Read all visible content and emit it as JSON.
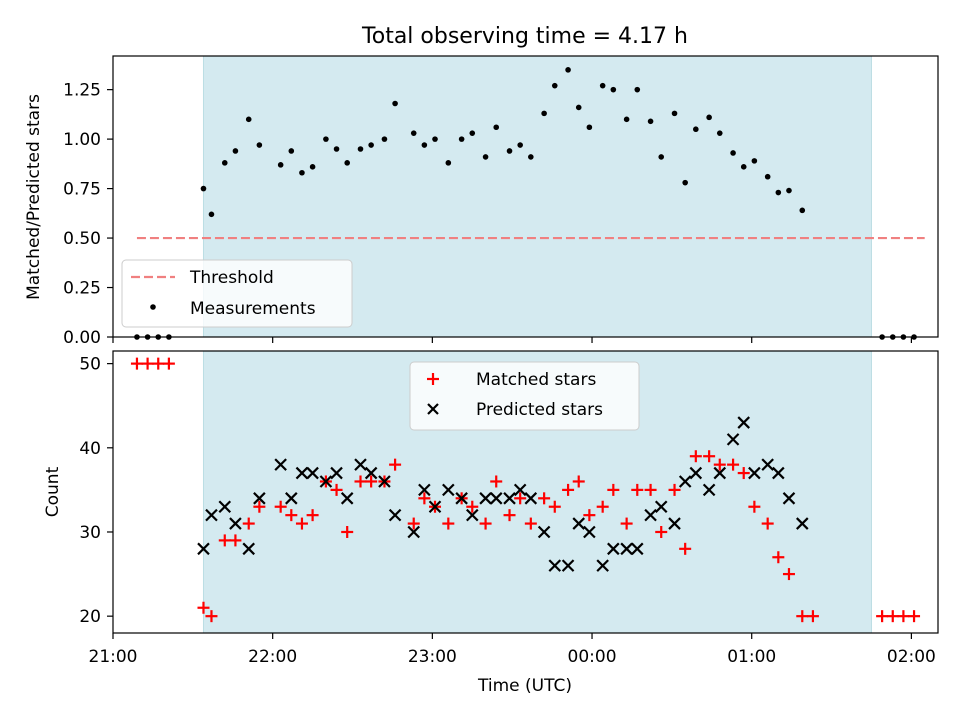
{
  "title": "Total observing time = 4.17 h",
  "colors": {
    "shade": "#d4eaf0",
    "shade_edge": "#bcdde4",
    "threshold": "#f08080",
    "measurement": "#000000",
    "matched": "#ff0000",
    "predicted": "#000000"
  },
  "chart_data": [
    {
      "type": "scatter",
      "ylabel": "Matched/Predicted stars",
      "xlim": [
        "21:00",
        "02:10"
      ],
      "ylim": [
        0,
        1.42
      ],
      "yticks": [
        "0.00",
        "0.25",
        "0.50",
        "0.75",
        "1.00",
        "1.25"
      ],
      "shaded_interval": [
        "21:34",
        "23:59+1:45"
      ],
      "threshold": {
        "name": "Threshold",
        "value": 0.5,
        "x_range": [
          "21:09",
          "02:05"
        ],
        "style": "dashed"
      },
      "legend": {
        "location": "lower-left",
        "entries": [
          "Threshold",
          "Measurements"
        ]
      },
      "series": [
        {
          "name": "Measurements",
          "marker": "dot",
          "points": [
            [
              "21:09",
              0
            ],
            [
              "21:13",
              0
            ],
            [
              "21:17",
              0
            ],
            [
              "21:21",
              0
            ],
            [
              "21:34",
              0.75
            ],
            [
              "21:37",
              0.62
            ],
            [
              "21:42",
              0.88
            ],
            [
              "21:46",
              0.94
            ],
            [
              "21:51",
              1.1
            ],
            [
              "21:55",
              0.97
            ],
            [
              "22:03",
              0.87
            ],
            [
              "22:07",
              0.94
            ],
            [
              "22:11",
              0.83
            ],
            [
              "22:15",
              0.86
            ],
            [
              "22:20",
              1.0
            ],
            [
              "22:24",
              0.95
            ],
            [
              "22:28",
              0.88
            ],
            [
              "22:33",
              0.95
            ],
            [
              "22:37",
              0.97
            ],
            [
              "22:42",
              1.0
            ],
            [
              "22:46",
              1.18
            ],
            [
              "22:53",
              1.03
            ],
            [
              "22:57",
              0.97
            ],
            [
              "23:01",
              1.0
            ],
            [
              "23:06",
              0.88
            ],
            [
              "23:11",
              1.0
            ],
            [
              "23:15",
              1.03
            ],
            [
              "23:20",
              0.91
            ],
            [
              "23:24",
              1.06
            ],
            [
              "23:29",
              0.94
            ],
            [
              "23:33",
              0.97
            ],
            [
              "23:37",
              0.91
            ],
            [
              "23:42",
              1.13
            ],
            [
              "23:46",
              1.27
            ],
            [
              "23:51",
              1.35
            ],
            [
              "23:55",
              1.16
            ],
            [
              "23:59",
              1.06
            ],
            [
              "00:04",
              1.27
            ],
            [
              "00:08",
              1.25
            ],
            [
              "00:13",
              1.1
            ],
            [
              "00:17",
              1.25
            ],
            [
              "00:22",
              1.09
            ],
            [
              "00:26",
              0.91
            ],
            [
              "00:31",
              1.13
            ],
            [
              "00:35",
              0.78
            ],
            [
              "00:39",
              1.05
            ],
            [
              "00:44",
              1.11
            ],
            [
              "00:48",
              1.03
            ],
            [
              "00:53",
              0.93
            ],
            [
              "00:57",
              0.86
            ],
            [
              "01:01",
              0.89
            ],
            [
              "01:06",
              0.81
            ],
            [
              "01:10",
              0.73
            ],
            [
              "01:14",
              0.74
            ],
            [
              "01:19",
              0.64
            ],
            [
              "01:49",
              0
            ],
            [
              "01:53",
              0
            ],
            [
              "01:57",
              0
            ],
            [
              "02:01",
              0
            ]
          ]
        }
      ]
    },
    {
      "type": "scatter",
      "xlabel": "Time (UTC)",
      "ylabel": "Count",
      "xlim": [
        "21:00",
        "02:10"
      ],
      "ylim": [
        18,
        51.5
      ],
      "yticks": [
        "20",
        "30",
        "40",
        "50"
      ],
      "xticks": [
        "21:00",
        "22:00",
        "23:00",
        "00:00",
        "01:00",
        "02:00"
      ],
      "legend": {
        "location": "upper-center",
        "entries": [
          "Matched stars",
          "Predicted stars"
        ]
      },
      "series": [
        {
          "name": "Matched stars",
          "marker": "plus",
          "points": [
            [
              "21:09",
              50
            ],
            [
              "21:13",
              50
            ],
            [
              "21:17",
              50
            ],
            [
              "21:21",
              50
            ],
            [
              "21:34",
              21
            ],
            [
              "21:37",
              20
            ],
            [
              "21:42",
              29
            ],
            [
              "21:46",
              29
            ],
            [
              "21:51",
              31
            ],
            [
              "21:55",
              33
            ],
            [
              "22:03",
              33
            ],
            [
              "22:07",
              32
            ],
            [
              "22:11",
              31
            ],
            [
              "22:15",
              32
            ],
            [
              "22:20",
              36
            ],
            [
              "22:24",
              35
            ],
            [
              "22:28",
              30
            ],
            [
              "22:33",
              36
            ],
            [
              "22:37",
              36
            ],
            [
              "22:42",
              36
            ],
            [
              "22:46",
              38
            ],
            [
              "22:53",
              31
            ],
            [
              "22:57",
              34
            ],
            [
              "23:01",
              33
            ],
            [
              "23:06",
              31
            ],
            [
              "23:11",
              34
            ],
            [
              "23:15",
              33
            ],
            [
              "23:20",
              31
            ],
            [
              "23:24",
              36
            ],
            [
              "23:29",
              32
            ],
            [
              "23:33",
              34
            ],
            [
              "23:37",
              31
            ],
            [
              "23:42",
              34
            ],
            [
              "23:46",
              33
            ],
            [
              "23:51",
              35
            ],
            [
              "23:55",
              36
            ],
            [
              "23:59",
              32
            ],
            [
              "00:04",
              33
            ],
            [
              "00:08",
              35
            ],
            [
              "00:13",
              31
            ],
            [
              "00:17",
              35
            ],
            [
              "00:22",
              35
            ],
            [
              "00:26",
              30
            ],
            [
              "00:31",
              35
            ],
            [
              "00:35",
              28
            ],
            [
              "00:39",
              39
            ],
            [
              "00:44",
              39
            ],
            [
              "00:48",
              38
            ],
            [
              "00:53",
              38
            ],
            [
              "00:57",
              37
            ],
            [
              "01:01",
              33
            ],
            [
              "01:06",
              31
            ],
            [
              "01:10",
              27
            ],
            [
              "01:14",
              25
            ],
            [
              "01:19",
              20
            ],
            [
              "01:23",
              20
            ],
            [
              "01:49",
              20
            ],
            [
              "01:53",
              20
            ],
            [
              "01:57",
              20
            ],
            [
              "02:01",
              20
            ]
          ]
        },
        {
          "name": "Predicted stars",
          "marker": "x",
          "points": [
            [
              "21:34",
              28
            ],
            [
              "21:37",
              32
            ],
            [
              "21:42",
              33
            ],
            [
              "21:46",
              31
            ],
            [
              "21:51",
              28
            ],
            [
              "21:55",
              34
            ],
            [
              "22:03",
              38
            ],
            [
              "22:07",
              34
            ],
            [
              "22:11",
              37
            ],
            [
              "22:15",
              37
            ],
            [
              "22:20",
              36
            ],
            [
              "22:24",
              37
            ],
            [
              "22:28",
              34
            ],
            [
              "22:33",
              38
            ],
            [
              "22:37",
              37
            ],
            [
              "22:42",
              36
            ],
            [
              "22:46",
              32
            ],
            [
              "22:53",
              30
            ],
            [
              "22:57",
              35
            ],
            [
              "23:01",
              33
            ],
            [
              "23:06",
              35
            ],
            [
              "23:11",
              34
            ],
            [
              "23:15",
              32
            ],
            [
              "23:20",
              34
            ],
            [
              "23:24",
              34
            ],
            [
              "23:29",
              34
            ],
            [
              "23:33",
              35
            ],
            [
              "23:37",
              34
            ],
            [
              "23:42",
              30
            ],
            [
              "23:46",
              26
            ],
            [
              "23:51",
              26
            ],
            [
              "23:55",
              31
            ],
            [
              "23:59",
              30
            ],
            [
              "00:04",
              26
            ],
            [
              "00:08",
              28
            ],
            [
              "00:13",
              28
            ],
            [
              "00:17",
              28
            ],
            [
              "00:22",
              32
            ],
            [
              "00:26",
              33
            ],
            [
              "00:31",
              31
            ],
            [
              "00:35",
              36
            ],
            [
              "00:39",
              37
            ],
            [
              "00:44",
              35
            ],
            [
              "00:48",
              37
            ],
            [
              "00:53",
              41
            ],
            [
              "00:57",
              43
            ],
            [
              "01:01",
              37
            ],
            [
              "01:06",
              38
            ],
            [
              "01:10",
              37
            ],
            [
              "01:14",
              34
            ],
            [
              "01:19",
              31
            ]
          ]
        }
      ]
    }
  ]
}
